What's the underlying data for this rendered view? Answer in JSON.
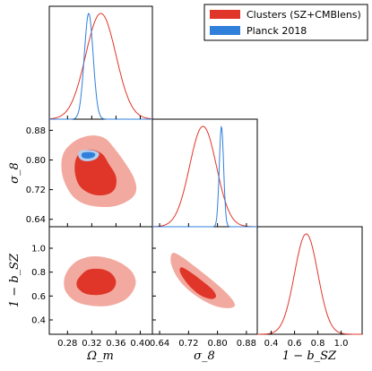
{
  "chart_data": {
    "type": "corner",
    "legend": {
      "placement": "top-right",
      "entries": [
        {
          "label": "Clusters (SZ+CMBlens)",
          "color": "#e0362a",
          "light_color": "#f2aaa0"
        },
        {
          "label": "Planck 2018",
          "color": "#2f7fdb",
          "light_color": "#b2cff0"
        }
      ]
    },
    "parameters": [
      {
        "key": "omega_m",
        "label": "Ωm",
        "ticks": [
          "0.28",
          "0.32",
          "0.36",
          "0.40"
        ],
        "range": [
          0.25,
          0.42
        ]
      },
      {
        "key": "sigma_8",
        "label": "σ8",
        "ticks": [
          "0.64",
          "0.72",
          "0.80",
          "0.88"
        ],
        "range": [
          0.62,
          0.91
        ]
      },
      {
        "key": "one_minus_bsz",
        "label": "1 − b_SZ",
        "ticks": [
          "0.4",
          "0.6",
          "0.8",
          "1.0"
        ],
        "range": [
          0.28,
          1.18
        ]
      }
    ],
    "axis_labels": {
      "x": [
        "Ω_m",
        "σ_8",
        "1 − b_SZ"
      ],
      "y": [
        "σ_8",
        "1 − b_SZ"
      ]
    },
    "marginals": [
      {
        "param": "omega_m",
        "series": [
          {
            "name": "Clusters (SZ+CMBlens)",
            "mean": 0.335,
            "sigma": 0.025
          },
          {
            "name": "Planck 2018",
            "mean": 0.315,
            "sigma": 0.0073
          }
        ]
      },
      {
        "param": "sigma_8",
        "series": [
          {
            "name": "Clusters (SZ+CMBlens)",
            "mean": 0.76,
            "sigma": 0.037
          },
          {
            "name": "Planck 2018",
            "mean": 0.811,
            "sigma": 0.006
          }
        ]
      },
      {
        "param": "one_minus_bsz",
        "series": [
          {
            "name": "Clusters (SZ+CMBlens)",
            "mean": 0.7,
            "sigma": 0.1
          }
        ]
      }
    ],
    "contours": [
      {
        "x": "omega_m",
        "y": "sigma_8",
        "series": "Clusters (SZ+CMBlens)",
        "level": "95%",
        "points": [
          [
            0.276,
            0.826
          ],
          [
            0.296,
            0.855
          ],
          [
            0.32,
            0.866
          ],
          [
            0.342,
            0.858
          ],
          [
            0.358,
            0.83
          ],
          [
            0.376,
            0.79
          ],
          [
            0.39,
            0.75
          ],
          [
            0.393,
            0.715
          ],
          [
            0.38,
            0.69
          ],
          [
            0.352,
            0.674
          ],
          [
            0.315,
            0.678
          ],
          [
            0.29,
            0.7
          ],
          [
            0.274,
            0.745
          ],
          [
            0.27,
            0.79
          ]
        ]
      },
      {
        "x": "omega_m",
        "y": "sigma_8",
        "series": "Clusters (SZ+CMBlens)",
        "level": "68%",
        "points": [
          [
            0.296,
            0.81
          ],
          [
            0.315,
            0.828
          ],
          [
            0.336,
            0.818
          ],
          [
            0.348,
            0.79
          ],
          [
            0.36,
            0.755
          ],
          [
            0.358,
            0.722
          ],
          [
            0.343,
            0.706
          ],
          [
            0.32,
            0.708
          ],
          [
            0.3,
            0.73
          ],
          [
            0.292,
            0.77
          ]
        ]
      },
      {
        "x": "omega_m",
        "y": "sigma_8",
        "series": "Planck 2018",
        "level": "95%",
        "points": [
          [
            0.3,
            0.824
          ],
          [
            0.31,
            0.827
          ],
          [
            0.322,
            0.826
          ],
          [
            0.332,
            0.818
          ],
          [
            0.328,
            0.804
          ],
          [
            0.316,
            0.797
          ],
          [
            0.304,
            0.799
          ],
          [
            0.298,
            0.81
          ]
        ]
      },
      {
        "x": "omega_m",
        "y": "sigma_8",
        "series": "Planck 2018",
        "level": "68%",
        "points": [
          [
            0.304,
            0.818
          ],
          [
            0.312,
            0.821
          ],
          [
            0.322,
            0.82
          ],
          [
            0.326,
            0.814
          ],
          [
            0.321,
            0.806
          ],
          [
            0.311,
            0.804
          ],
          [
            0.304,
            0.808
          ]
        ]
      },
      {
        "x": "omega_m",
        "y": "one_minus_bsz",
        "series": "Clusters (SZ+CMBlens)",
        "level": "95%",
        "points": [
          [
            0.276,
            0.77
          ],
          [
            0.292,
            0.88
          ],
          [
            0.318,
            0.93
          ],
          [
            0.345,
            0.92
          ],
          [
            0.37,
            0.87
          ],
          [
            0.388,
            0.79
          ],
          [
            0.392,
            0.69
          ],
          [
            0.378,
            0.58
          ],
          [
            0.35,
            0.52
          ],
          [
            0.318,
            0.52
          ],
          [
            0.292,
            0.56
          ],
          [
            0.276,
            0.65
          ]
        ]
      },
      {
        "x": "omega_m",
        "y": "one_minus_bsz",
        "series": "Clusters (SZ+CMBlens)",
        "level": "68%",
        "points": [
          [
            0.3,
            0.76
          ],
          [
            0.314,
            0.82
          ],
          [
            0.336,
            0.825
          ],
          [
            0.352,
            0.79
          ],
          [
            0.36,
            0.72
          ],
          [
            0.354,
            0.65
          ],
          [
            0.336,
            0.612
          ],
          [
            0.312,
            0.615
          ],
          [
            0.298,
            0.66
          ],
          [
            0.295,
            0.71
          ]
        ]
      },
      {
        "x": "sigma_8",
        "y": "one_minus_bsz",
        "series": "Clusters (SZ+CMBlens)",
        "level": "95%",
        "points": [
          [
            0.676,
            0.96
          ],
          [
            0.7,
            0.93
          ],
          [
            0.74,
            0.84
          ],
          [
            0.79,
            0.72
          ],
          [
            0.83,
            0.61
          ],
          [
            0.848,
            0.53
          ],
          [
            0.836,
            0.5
          ],
          [
            0.8,
            0.51
          ],
          [
            0.754,
            0.575
          ],
          [
            0.716,
            0.66
          ],
          [
            0.688,
            0.76
          ],
          [
            0.671,
            0.88
          ]
        ]
      },
      {
        "x": "sigma_8",
        "y": "one_minus_bsz",
        "series": "Clusters (SZ+CMBlens)",
        "level": "68%",
        "points": [
          [
            0.7,
            0.84
          ],
          [
            0.72,
            0.81
          ],
          [
            0.752,
            0.74
          ],
          [
            0.784,
            0.66
          ],
          [
            0.796,
            0.6
          ],
          [
            0.784,
            0.575
          ],
          [
            0.756,
            0.6
          ],
          [
            0.73,
            0.66
          ],
          [
            0.708,
            0.74
          ],
          [
            0.696,
            0.805
          ]
        ]
      }
    ]
  }
}
